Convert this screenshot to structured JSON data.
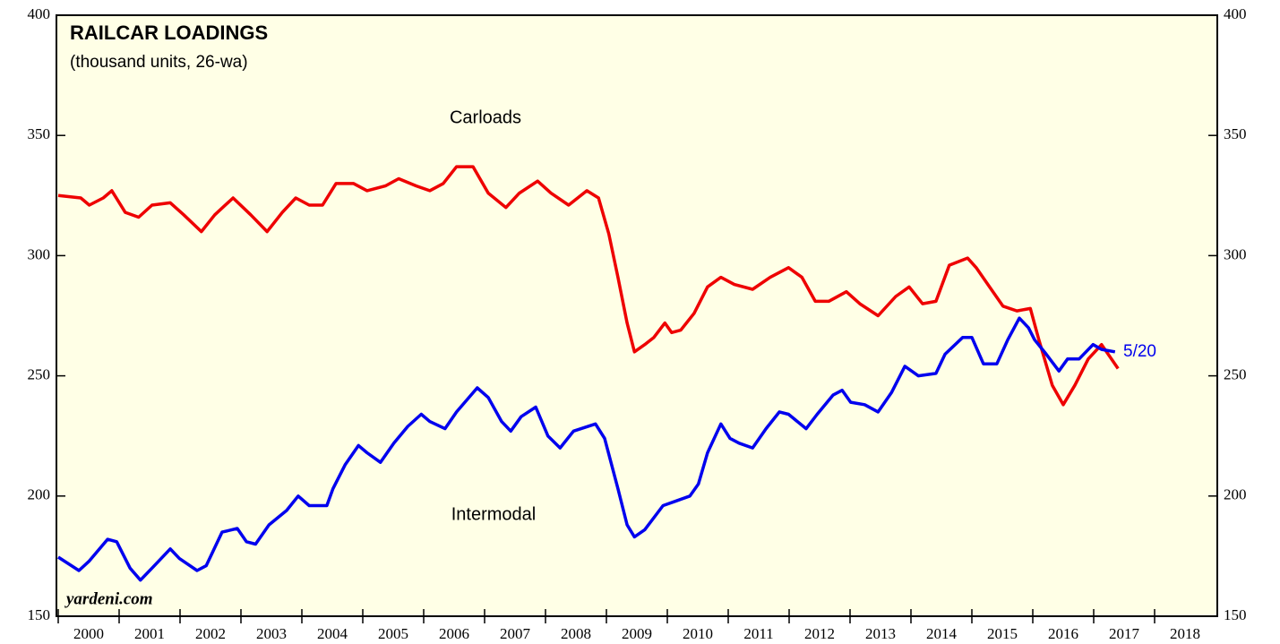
{
  "chart_data": {
    "type": "line",
    "title": "RAILCAR LOADINGS",
    "subtitle": "(thousand units, 26-wa)",
    "annotations": {
      "carloads": "Carloads",
      "intermodal": "Intermodal",
      "last_date": "5/20",
      "source": "yardeni.com"
    },
    "xlim": [
      2000,
      2019
    ],
    "xticks": [
      2000,
      2001,
      2002,
      2003,
      2004,
      2005,
      2006,
      2007,
      2008,
      2009,
      2010,
      2011,
      2012,
      2013,
      2014,
      2015,
      2016,
      2017,
      2018
    ],
    "ylim": [
      150,
      400
    ],
    "yticks": [
      150,
      200,
      250,
      300,
      350,
      400
    ],
    "series": [
      {
        "name": "Carloads",
        "color": "#ee0000",
        "x": [
          2000,
          2000.37,
          2000.51,
          2000.74,
          2000.88,
          2001.1,
          2001.32,
          2001.54,
          2001.84,
          2002.06,
          2002.35,
          2002.57,
          2002.87,
          2003.16,
          2003.43,
          2003.68,
          2003.9,
          2004.12,
          2004.34,
          2004.56,
          2004.85,
          2005.07,
          2005.37,
          2005.59,
          2005.88,
          2006.1,
          2006.32,
          2006.54,
          2006.81,
          2007.06,
          2007.35,
          2007.57,
          2007.87,
          2008.09,
          2008.38,
          2008.68,
          2008.87,
          2009.04,
          2009.19,
          2009.34,
          2009.46,
          2009.63,
          2009.78,
          2009.96,
          2010.07,
          2010.22,
          2010.44,
          2010.66,
          2010.88,
          2011.1,
          2011.4,
          2011.69,
          2011.99,
          2012.21,
          2012.43,
          2012.65,
          2012.94,
          2013.16,
          2013.46,
          2013.75,
          2013.97,
          2014.19,
          2014.41,
          2014.63,
          2014.93,
          2015.07,
          2015.29,
          2015.51,
          2015.74,
          2015.96,
          2016.1,
          2016.32,
          2016.5,
          2016.69,
          2016.91,
          2017.13,
          2017.4
        ],
        "values": [
          325,
          324,
          321,
          324,
          327,
          318,
          316,
          321,
          322,
          317,
          310,
          317,
          324,
          317,
          310,
          318,
          324,
          321,
          321,
          330,
          330,
          327,
          329,
          332,
          329,
          327,
          330,
          337,
          337,
          326,
          320,
          326,
          331,
          326,
          321,
          327,
          324,
          309,
          291,
          272,
          260,
          263,
          266,
          272,
          268,
          269,
          276,
          287,
          291,
          288,
          286,
          291,
          295,
          291,
          281,
          281,
          285,
          280,
          275,
          283,
          287,
          280,
          281,
          296,
          299,
          295,
          287,
          279,
          277,
          278,
          265,
          246,
          238,
          246,
          257,
          263,
          253
        ]
      },
      {
        "name": "Intermodal",
        "color": "#0000ee",
        "x": [
          2000,
          2000.34,
          2000.51,
          2000.81,
          2000.96,
          2001.18,
          2001.35,
          2001.54,
          2001.84,
          2001.99,
          2002.28,
          2002.43,
          2002.69,
          2002.94,
          2003.09,
          2003.24,
          2003.46,
          2003.75,
          2003.94,
          2004.12,
          2004.41,
          2004.51,
          2004.71,
          2004.93,
          2005.07,
          2005.29,
          2005.51,
          2005.74,
          2005.96,
          2006.1,
          2006.35,
          2006.54,
          2006.88,
          2007.06,
          2007.28,
          2007.43,
          2007.6,
          2007.84,
          2008.04,
          2008.24,
          2008.46,
          2008.82,
          2008.97,
          2009.19,
          2009.34,
          2009.46,
          2009.63,
          2009.93,
          2010.15,
          2010.37,
          2010.51,
          2010.66,
          2010.88,
          2011.03,
          2011.18,
          2011.4,
          2011.62,
          2011.84,
          2011.99,
          2012.28,
          2012.46,
          2012.72,
          2012.87,
          2013.01,
          2013.24,
          2013.46,
          2013.68,
          2013.9,
          2014.12,
          2014.41,
          2014.56,
          2014.85,
          2015.0,
          2015.19,
          2015.41,
          2015.59,
          2015.78,
          2015.93,
          2016.03,
          2016.22,
          2016.43,
          2016.57,
          2016.76,
          2016.99,
          2017.13,
          2017.35
        ],
        "values": [
          174.6,
          169,
          173,
          182,
          181,
          170,
          165,
          170,
          178,
          174,
          169,
          171,
          185,
          186.5,
          181,
          180,
          188,
          194,
          200,
          196,
          196,
          203,
          213,
          221,
          218,
          214,
          222,
          229,
          234,
          231,
          228,
          235,
          245,
          241,
          231,
          227,
          233,
          237,
          225,
          220,
          227,
          230,
          224,
          203,
          188,
          183,
          186,
          196,
          198,
          200,
          205,
          218,
          230,
          224,
          222,
          220,
          228,
          235,
          234,
          228,
          234,
          242,
          244,
          239,
          238,
          235,
          243,
          254,
          250,
          251,
          259,
          266,
          266,
          255,
          255,
          265,
          274,
          270,
          265,
          259,
          252,
          257,
          257,
          263,
          261,
          260
        ]
      }
    ]
  }
}
